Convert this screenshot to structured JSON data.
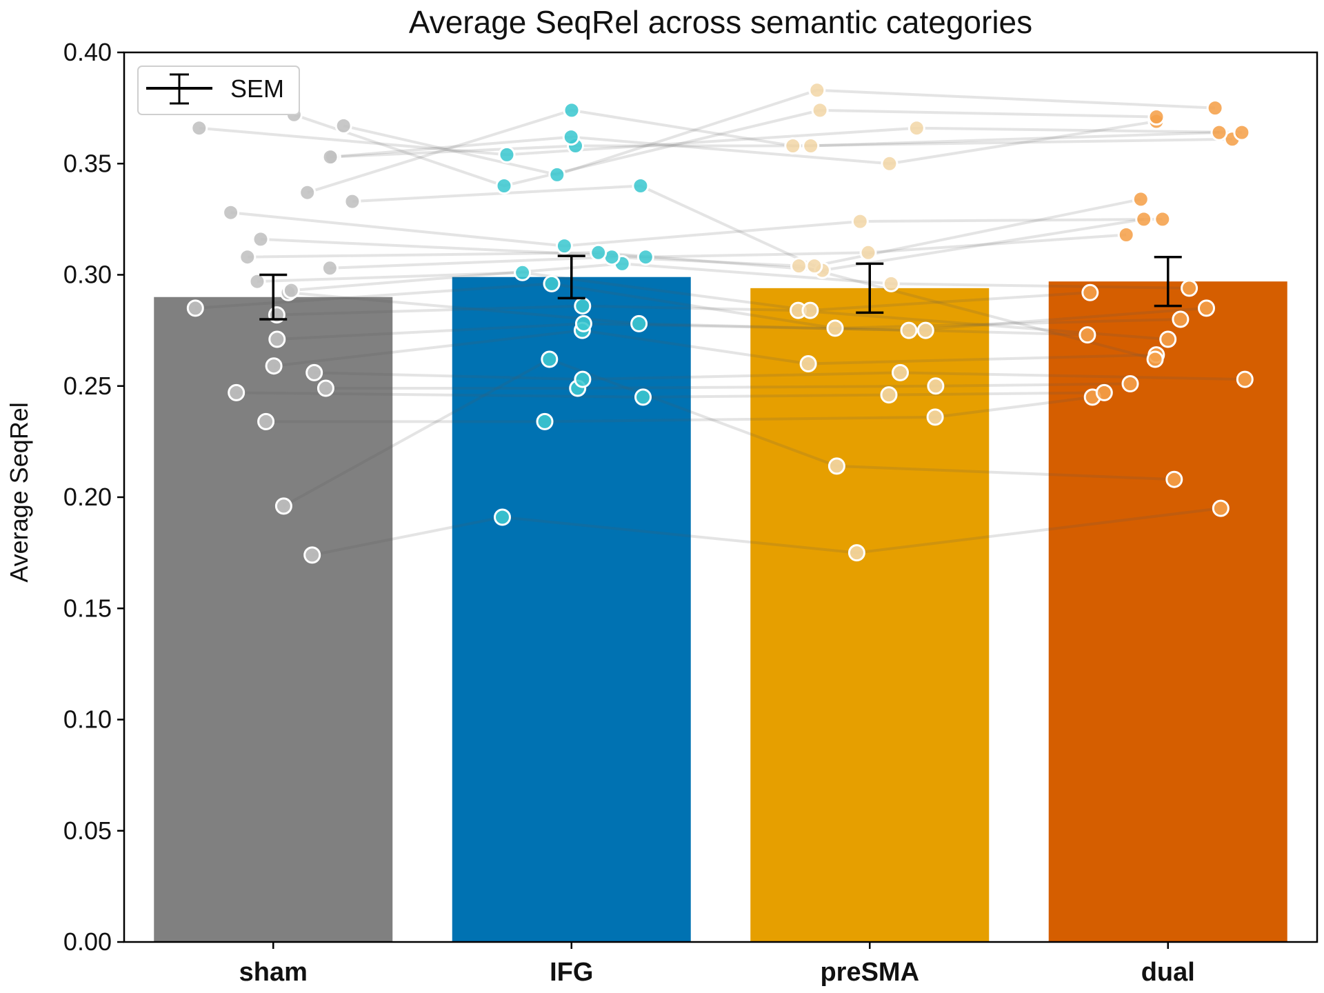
{
  "chart_data": {
    "type": "bar",
    "title": "Average SeqRel across semantic categories",
    "xlabel": "",
    "ylabel": "Average SeqRel",
    "ylim": [
      0,
      0.4
    ],
    "yticks": [
      "0.00",
      "0.05",
      "0.10",
      "0.15",
      "0.20",
      "0.25",
      "0.30",
      "0.35",
      "0.40"
    ],
    "ytick_values": [
      0,
      0.05,
      0.1,
      0.15,
      0.2,
      0.25,
      0.3,
      0.35,
      0.4
    ],
    "categories": [
      "sham",
      "IFG",
      "preSMA",
      "dual"
    ],
    "values": [
      0.29,
      0.299,
      0.294,
      0.297
    ],
    "sem": [
      0.01,
      0.0095,
      0.011,
      0.011
    ],
    "bar_colors": [
      "#808080",
      "#0072b2",
      "#e69f00",
      "#d55e00"
    ],
    "dot_colors": [
      "#c0c0c0",
      "#3ec8d0",
      "#f3d7a8",
      "#f5a14a"
    ],
    "legend": {
      "label": "SEM",
      "position": "top-left"
    },
    "subjects": [
      [
        0.174,
        0.191,
        0.175,
        0.195
      ],
      [
        0.196,
        0.262,
        0.214,
        0.208
      ],
      [
        0.234,
        0.234,
        0.236,
        0.245
      ],
      [
        0.247,
        0.245,
        0.246,
        0.247
      ],
      [
        0.249,
        0.249,
        0.25,
        0.251
      ],
      [
        0.256,
        0.253,
        0.256,
        0.253
      ],
      [
        0.259,
        0.275,
        0.26,
        0.264
      ],
      [
        0.271,
        0.278,
        0.275,
        0.273
      ],
      [
        0.282,
        0.286,
        0.284,
        0.271
      ],
      [
        0.285,
        0.296,
        0.276,
        0.28
      ],
      [
        0.292,
        0.278,
        0.275,
        0.285
      ],
      [
        0.293,
        0.305,
        0.296,
        0.294
      ],
      [
        0.297,
        0.301,
        0.284,
        0.292
      ],
      [
        0.303,
        0.308,
        0.304,
        0.262
      ],
      [
        0.308,
        0.31,
        0.302,
        0.325
      ],
      [
        0.316,
        0.308,
        0.31,
        0.318
      ],
      [
        0.328,
        0.313,
        0.324,
        0.325
      ],
      [
        0.333,
        0.34,
        0.304,
        0.334
      ],
      [
        0.337,
        0.374,
        0.358,
        0.361
      ],
      [
        0.353,
        0.358,
        0.358,
        0.364
      ],
      [
        0.353,
        0.362,
        0.35,
        0.369
      ],
      [
        0.366,
        0.354,
        0.366,
        0.364
      ],
      [
        0.372,
        0.34,
        0.374,
        0.371
      ],
      [
        0.367,
        0.345,
        0.383,
        0.375
      ]
    ]
  }
}
